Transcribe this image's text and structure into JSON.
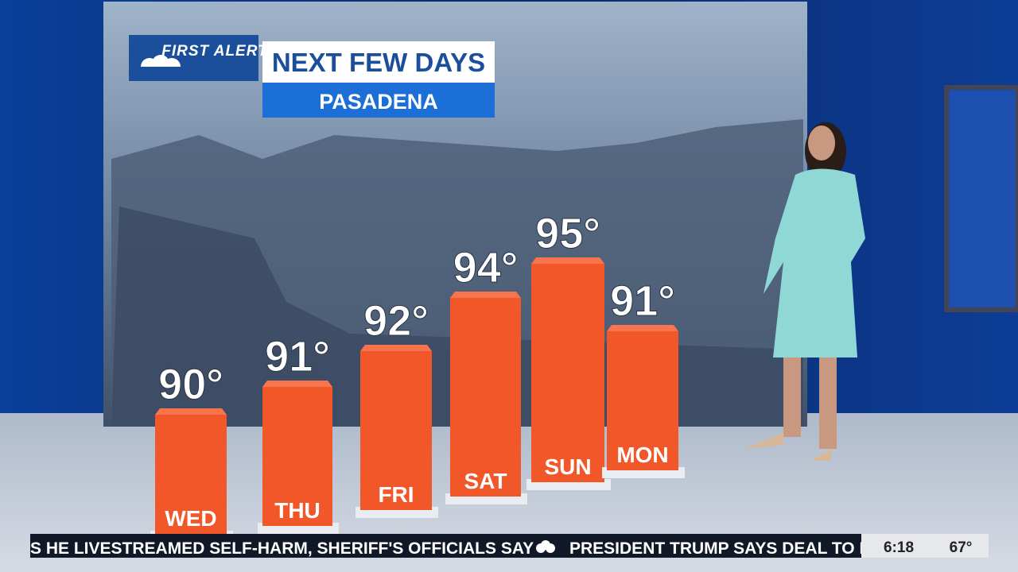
{
  "header": {
    "brand": "FIRST ALERT",
    "title": "NEXT FEW DAYS",
    "location": "PASADENA"
  },
  "chart_data": {
    "type": "bar",
    "categories": [
      "WED",
      "THU",
      "FRI",
      "SAT",
      "SUN",
      "MON"
    ],
    "values": [
      90,
      91,
      92,
      94,
      95,
      91
    ],
    "value_labels": [
      "90°",
      "91°",
      "92°",
      "94°",
      "95°",
      "91°"
    ],
    "color": "#f2572a"
  },
  "ticker": {
    "headline_1": "S HE LIVESTREAMED SELF-HARM, SHERIFF'S OFFICIALS SAY",
    "headline_2": "PRESIDENT TRUMP SAYS DEAL TO R",
    "time": "6:18",
    "temperature": "67°"
  }
}
